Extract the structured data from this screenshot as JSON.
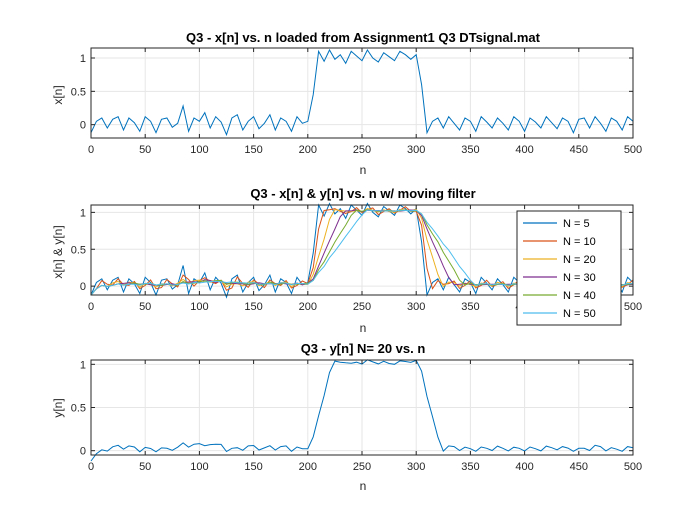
{
  "chart_data": [
    {
      "type": "line",
      "title": "Q3 - x[n] vs. n loaded from Assignment1 Q3 DTsignal.mat",
      "xlabel": "n",
      "ylabel": "x[n]",
      "xlim": [
        0,
        500
      ],
      "ylim": [
        -0.2,
        1.15
      ],
      "xticks": [
        0,
        50,
        100,
        150,
        200,
        250,
        300,
        350,
        400,
        450,
        500
      ],
      "yticks": [
        0,
        0.5,
        1
      ],
      "ytick_labels": [
        "0",
        "0.5",
        "1"
      ],
      "grid": true,
      "series": [
        {
          "color": "#0072BD",
          "x": [
            0,
            5,
            10,
            15,
            20,
            25,
            30,
            35,
            40,
            45,
            50,
            55,
            60,
            65,
            70,
            75,
            80,
            85,
            90,
            95,
            100,
            105,
            110,
            115,
            120,
            125,
            130,
            135,
            140,
            145,
            150,
            155,
            160,
            165,
            170,
            175,
            180,
            185,
            190,
            195,
            200,
            205,
            210,
            215,
            220,
            225,
            230,
            235,
            240,
            245,
            250,
            255,
            260,
            265,
            270,
            275,
            280,
            285,
            290,
            295,
            300,
            305,
            310,
            315,
            320,
            325,
            330,
            335,
            340,
            345,
            350,
            355,
            360,
            365,
            370,
            375,
            380,
            385,
            390,
            395,
            400,
            405,
            410,
            415,
            420,
            425,
            430,
            435,
            440,
            445,
            450,
            455,
            460,
            465,
            470,
            475,
            480,
            485,
            490,
            495,
            500
          ],
          "y": [
            -0.12,
            0.05,
            0.1,
            -0.05,
            0.08,
            0.12,
            -0.08,
            0.1,
            0.03,
            -0.1,
            0.12,
            0.05,
            -0.12,
            0.08,
            0.1,
            -0.04,
            0.02,
            0.28,
            -0.1,
            0.1,
            0.05,
            0.18,
            -0.05,
            0.12,
            0.04,
            -0.15,
            0.1,
            0.15,
            -0.08,
            0.05,
            0.12,
            -0.06,
            0.02,
            0.15,
            -0.08,
            0.1,
            0.05,
            -0.1,
            0.12,
            0.02,
            0.05,
            0.45,
            1.1,
            0.95,
            1.12,
            0.98,
            1.05,
            0.92,
            1.1,
            1.03,
            0.96,
            1.12,
            1.0,
            0.94,
            1.08,
            1.02,
            0.96,
            1.1,
            1.05,
            0.98,
            1.05,
            0.6,
            -0.12,
            0.05,
            0.1,
            -0.05,
            0.12,
            0.02,
            -0.08,
            0.1,
            0.05,
            -0.1,
            0.12,
            0.04,
            -0.05,
            0.1,
            0.02,
            -0.08,
            0.12,
            0.05,
            -0.1,
            0.1,
            0.04,
            -0.05,
            0.12,
            0.03,
            -0.06,
            0.1,
            0.05,
            -0.12,
            0.08,
            0.1,
            -0.05,
            0.12,
            0.02,
            -0.1,
            0.1,
            0.05,
            -0.08,
            0.12,
            0.05
          ]
        }
      ]
    },
    {
      "type": "line",
      "title": "Q3 - x[n] & y[n] vs. n w/ moving filter",
      "xlabel": "n",
      "ylabel": "x[n] & y[n]",
      "xlim": [
        0,
        500
      ],
      "ylim": [
        -0.12,
        1.1
      ],
      "xticks": [
        0,
        50,
        100,
        150,
        200,
        250,
        300,
        350,
        400,
        450,
        500
      ],
      "yticks": [
        0,
        0.5,
        1
      ],
      "ytick_labels": [
        "0",
        "0.5",
        "1"
      ],
      "grid": true,
      "legend_position": "right",
      "series": [
        {
          "name": "N = 5",
          "color": "#0072BD",
          "window": 5
        },
        {
          "name": "N = 10",
          "color": "#D95319",
          "window": 10
        },
        {
          "name": "N = 20",
          "color": "#EDB120",
          "window": 20
        },
        {
          "name": "N = 30",
          "color": "#7E2F8E",
          "window": 30
        },
        {
          "name": "N = 40",
          "color": "#77AC30",
          "window": 40
        },
        {
          "name": "N = 50",
          "color": "#4DBEEE",
          "window": 50
        }
      ]
    },
    {
      "type": "line",
      "title": "Q3 - y[n] N= 20 vs. n",
      "xlabel": "n",
      "ylabel": "y[n]",
      "xlim": [
        0,
        500
      ],
      "ylim": [
        -0.05,
        1.05
      ],
      "xticks": [
        0,
        50,
        100,
        150,
        200,
        250,
        300,
        350,
        400,
        450,
        500
      ],
      "yticks": [
        0,
        0.5,
        1
      ],
      "ytick_labels": [
        "0",
        "0.5",
        "1"
      ],
      "grid": true,
      "series": [
        {
          "color": "#0072BD",
          "window": 20
        }
      ]
    }
  ]
}
